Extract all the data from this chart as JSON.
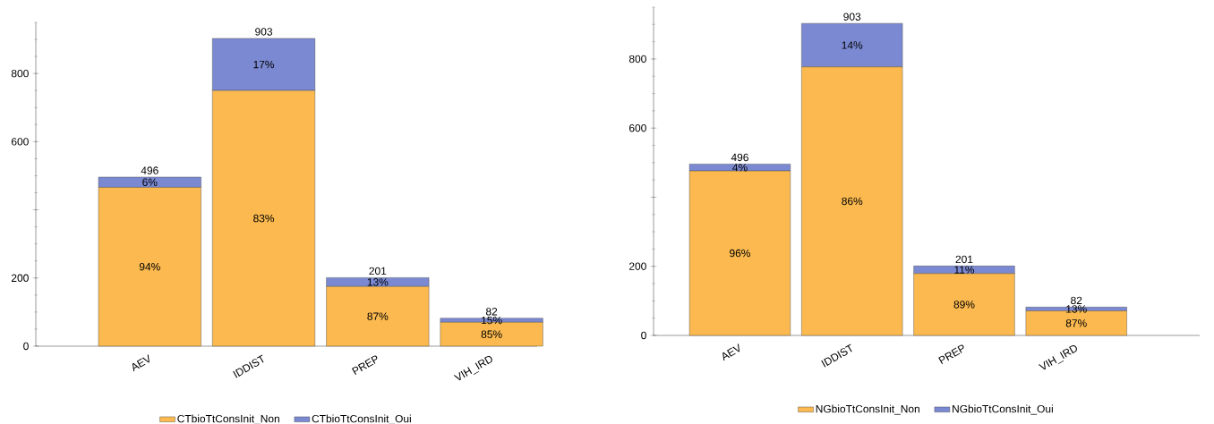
{
  "chart_data": [
    {
      "type": "bar",
      "stacked": true,
      "categories": [
        "AEV",
        "IDDIST",
        "PREP",
        "VIH_IRD"
      ],
      "series": [
        {
          "name": "CTbioTtConsInit_Non",
          "color": "#fbb94f",
          "values": [
            466,
            750,
            175,
            70
          ]
        },
        {
          "name": "CTbioTtConsInit_Oui",
          "color": "#7b89d3",
          "values": [
            30,
            153,
            26,
            12
          ]
        }
      ],
      "annotations": [
        "94%",
        "83%",
        "87%",
        "85%",
        "6%",
        "17%",
        "13%",
        "15%"
      ],
      "totals": [
        "496",
        "903",
        "201",
        "82"
      ],
      "ylim": [
        0,
        950
      ],
      "yticks": [
        0,
        200,
        {
          "value": 400,
          "label": null
        },
        600,
        800
      ],
      "legend": "bottom"
    },
    {
      "type": "bar",
      "stacked": true,
      "categories": [
        "AEV",
        "IDDIST",
        "PREP",
        "VIH_IRD"
      ],
      "series": [
        {
          "name": "NGbioTtConsInit_Non",
          "color": "#fbb94f",
          "values": [
            476,
            777,
            179,
            71
          ]
        },
        {
          "name": "NGbioTtConsInit_Oui",
          "color": "#7b89d3",
          "values": [
            20,
            126,
            22,
            11
          ]
        }
      ],
      "annotations": [
        "96%",
        "86%",
        "89%",
        "87%",
        "4%",
        "14%",
        "11%",
        "13%"
      ],
      "totals": [
        "496",
        "903",
        "201",
        "82"
      ],
      "ylim": [
        0,
        950
      ],
      "yticks": [
        0,
        200,
        {
          "value": 400,
          "label": null
        },
        600,
        800
      ],
      "legend": "bottom"
    }
  ]
}
